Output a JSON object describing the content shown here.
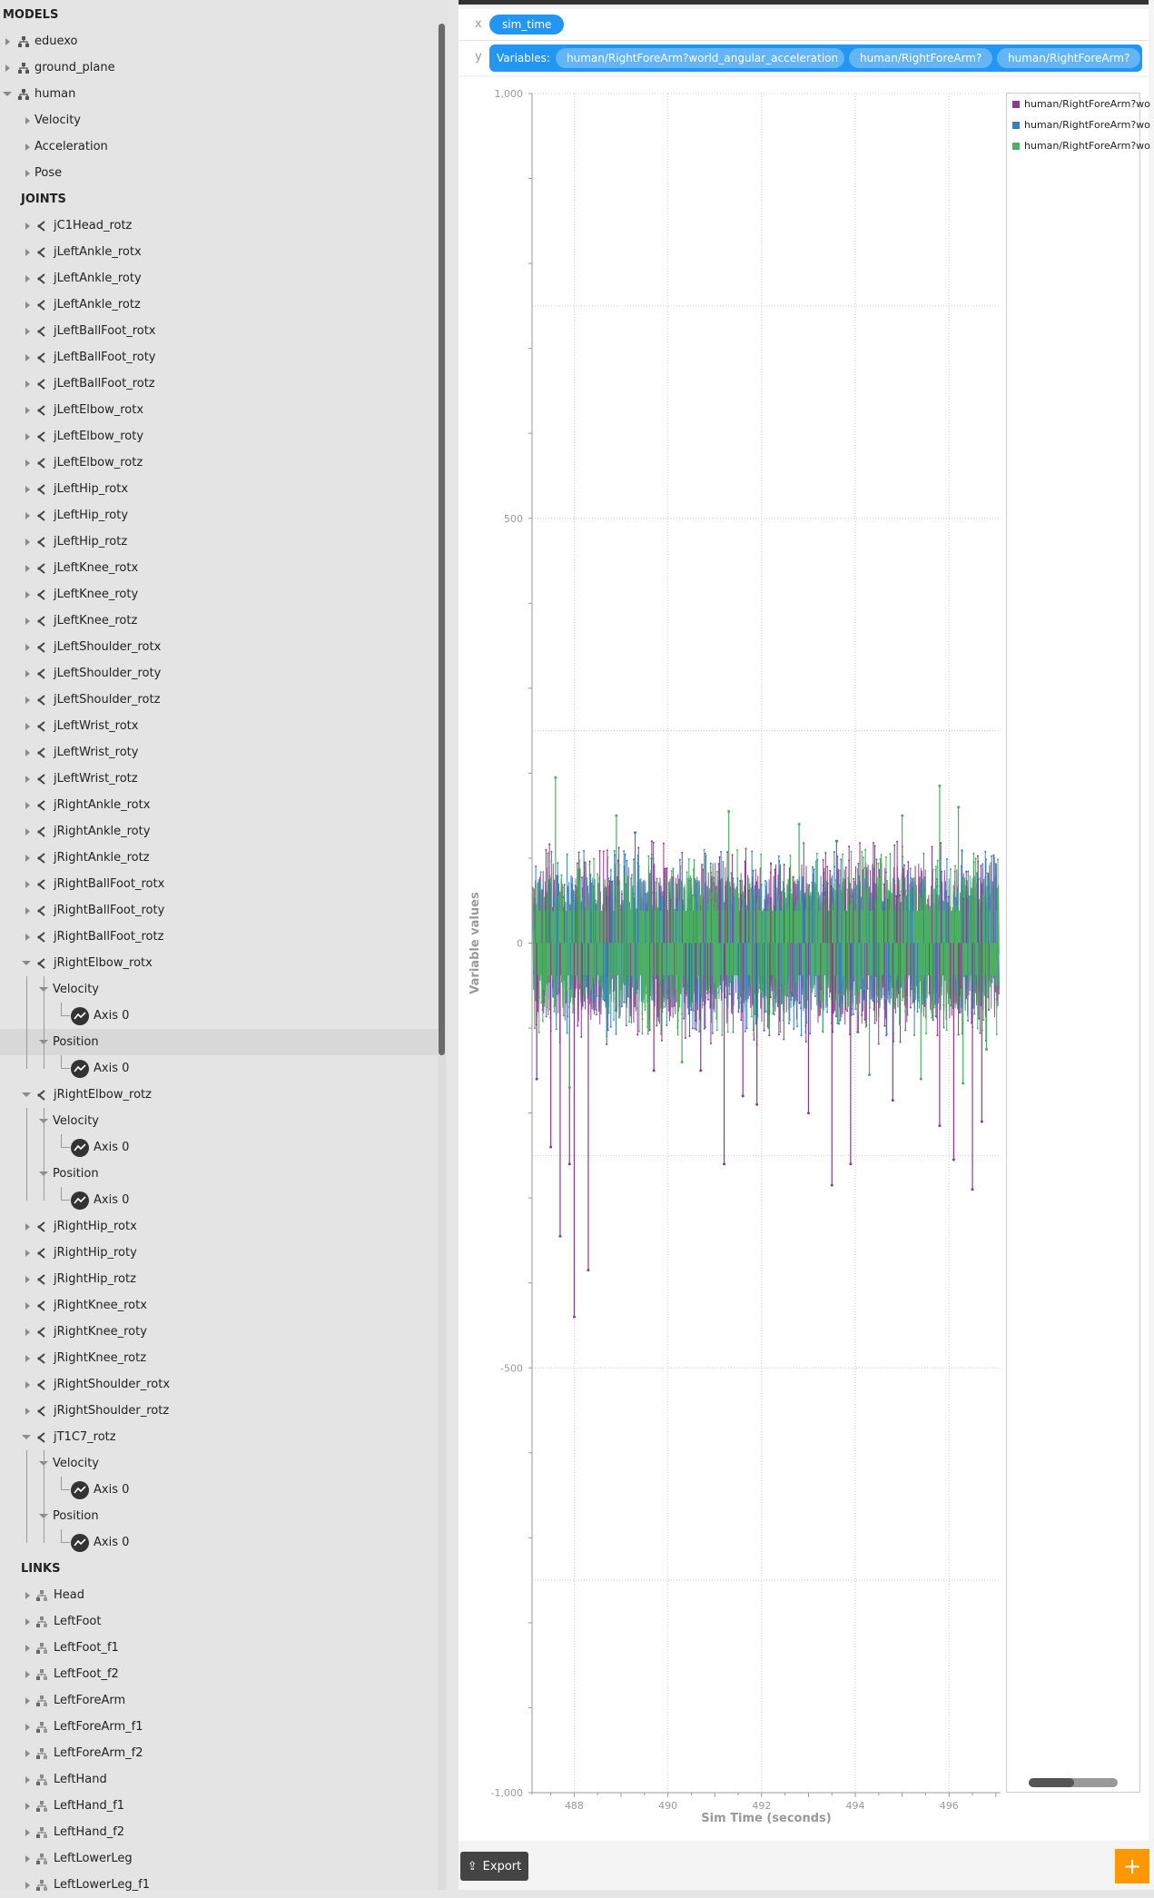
{
  "sidebar": {
    "models_heading": "MODELS",
    "models": [
      {
        "label": "eduexo",
        "expanded": false
      },
      {
        "label": "ground_plane",
        "expanded": false
      },
      {
        "label": "human",
        "expanded": true
      }
    ],
    "human_children": [
      "Velocity",
      "Acceleration",
      "Pose"
    ],
    "joints_heading": "JOINTS",
    "joints_before": [
      "jC1Head_rotz",
      "jLeftAnkle_rotx",
      "jLeftAnkle_roty",
      "jLeftAnkle_rotz",
      "jLeftBallFoot_rotx",
      "jLeftBallFoot_roty",
      "jLeftBallFoot_rotz",
      "jLeftElbow_rotx",
      "jLeftElbow_roty",
      "jLeftElbow_rotz",
      "jLeftHip_rotx",
      "jLeftHip_roty",
      "jLeftHip_rotz",
      "jLeftKnee_rotx",
      "jLeftKnee_roty",
      "jLeftKnee_rotz",
      "jLeftShoulder_rotx",
      "jLeftShoulder_roty",
      "jLeftShoulder_rotz",
      "jLeftWrist_rotx",
      "jLeftWrist_roty",
      "jLeftWrist_rotz",
      "jRightAnkle_rotx",
      "jRightAnkle_roty",
      "jRightAnkle_rotz",
      "jRightBallFoot_rotx",
      "jRightBallFoot_roty",
      "jRightBallFoot_rotz"
    ],
    "joint_rightelbow_rotx": "jRightElbow_rotx",
    "joint_rightelbow_rotz": "jRightElbow_rotz",
    "joints_middle": [
      "jRightHip_rotx",
      "jRightHip_roty",
      "jRightHip_rotz",
      "jRightKnee_rotx",
      "jRightKnee_roty",
      "jRightKnee_rotz",
      "jRightShoulder_rotx",
      "jRightShoulder_rotz"
    ],
    "joint_t1c7": "jT1C7_rotz",
    "velocity_label": "Velocity",
    "position_label": "Position",
    "axis_label": "Axis 0",
    "links_heading": "LINKS",
    "links": [
      "Head",
      "LeftFoot",
      "LeftFoot_f1",
      "LeftFoot_f2",
      "LeftForeArm",
      "LeftForeArm_f1",
      "LeftForeArm_f2",
      "LeftHand",
      "LeftHand_f1",
      "LeftHand_f2",
      "LeftLowerLeg",
      "LeftLowerLeg_f1"
    ]
  },
  "plot": {
    "x_axis_letter": "x",
    "y_axis_letter": "y",
    "x_variable": "sim_time",
    "variables_label": "Variables:",
    "y_variables": [
      "human/RightForeArm?world_angular_acceleration",
      "human/RightForeArm?",
      "human/RightForeArm?"
    ],
    "export_label": "Export",
    "add_label": "+"
  },
  "colors": {
    "series1": "#8e3a8c",
    "series2": "#3a7ebf",
    "series3": "#4caf64",
    "accent": "#2196f3",
    "add_button": "#ff9800"
  },
  "chart_data": {
    "type": "line",
    "xlabel": "Sim Time (seconds)",
    "ylabel": "Variable values",
    "xlim": [
      487.1,
      497.1
    ],
    "ylim": [
      -1000,
      1000
    ],
    "x_ticks": [
      488,
      490,
      492,
      494,
      496
    ],
    "y_ticks": [
      1000,
      500,
      0,
      -500,
      -1000
    ],
    "y_tick_labels": [
      "1,000",
      "500",
      "0",
      "-500",
      "-1,000"
    ],
    "grid": true,
    "legend_position": "right",
    "series": [
      {
        "name": "human/RightForeArm?wo",
        "color": "#8e3a8c",
        "band": [
          -60,
          60
        ],
        "spikes": [
          [
            487.2,
            -160
          ],
          [
            487.5,
            -240
          ],
          [
            487.7,
            -345
          ],
          [
            487.9,
            -260
          ],
          [
            488.0,
            -440
          ],
          [
            488.3,
            -385
          ],
          [
            489.7,
            -150
          ],
          [
            490.7,
            -150
          ],
          [
            491.2,
            -260
          ],
          [
            491.6,
            -180
          ],
          [
            491.9,
            -190
          ],
          [
            493.0,
            -200
          ],
          [
            493.5,
            -285
          ],
          [
            493.9,
            -260
          ],
          [
            494.8,
            -185
          ],
          [
            495.8,
            -215
          ],
          [
            496.1,
            -255
          ],
          [
            496.5,
            -290
          ],
          [
            496.7,
            -210
          ]
        ]
      },
      {
        "name": "human/RightForeArm?wo",
        "color": "#3a7ebf",
        "band": [
          -50,
          50
        ],
        "spikes": [
          [
            489.3,
            130
          ],
          [
            493.6,
            120
          ]
        ]
      },
      {
        "name": "human/RightForeArm?wo",
        "color": "#4caf64",
        "band": [
          -50,
          50
        ],
        "spikes": [
          [
            487.6,
            195
          ],
          [
            488.9,
            150
          ],
          [
            491.3,
            155
          ],
          [
            492.8,
            140
          ],
          [
            495.0,
            150
          ],
          [
            495.8,
            185
          ],
          [
            496.2,
            160
          ],
          [
            487.9,
            -170
          ],
          [
            490.3,
            -140
          ],
          [
            494.3,
            -155
          ],
          [
            495.4,
            -160
          ],
          [
            496.3,
            -165
          ],
          [
            496.8,
            -125
          ]
        ]
      }
    ]
  }
}
